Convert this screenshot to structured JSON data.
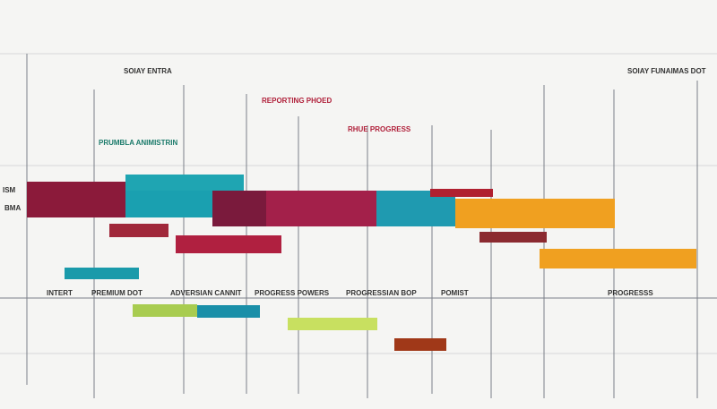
{
  "header": {
    "left_title": "SOIAY ENTRA",
    "right_title": "SOIAY FUNAIMAS DOT"
  },
  "notes": [
    "REPORTING PHOED",
    "RHUE PROGRESS",
    "PRUMBLA ANIMISTRIN"
  ],
  "side_labels": [
    "ISM",
    "BMA"
  ],
  "columns": [
    "INTERT",
    "PREMIUM DOT",
    "ADVERSIAN CANNIT",
    "PROGRESS POWERS",
    "PROGRESSIAN BOP",
    "POMIST",
    "PROGRESSS"
  ]
}
